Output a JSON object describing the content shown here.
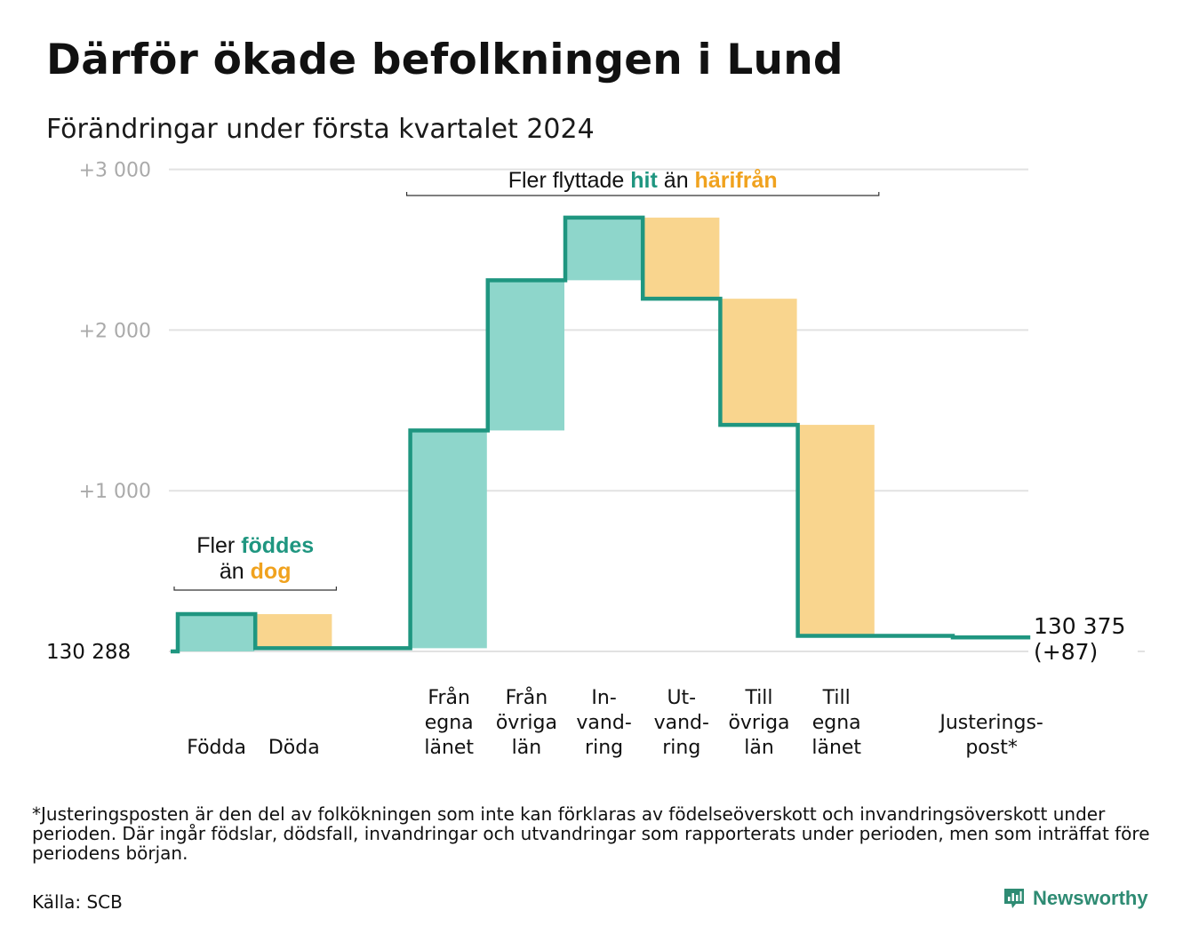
{
  "title": "Därför ökade befolkningen i Lund",
  "subtitle": "Förändringar under första kvartalet 2024",
  "footnote": "*Justeringsposten är den del av folkökningen som inte kan förklaras av födelseöverskott och invandringsöverskott under perioden. Där ingår födslar, dödsfall, invandringar och utvandringar som rapporterats under perioden, men som inträffat före periodens början.",
  "source": "Källa: SCB",
  "brand": "Newsworthy",
  "colors": {
    "increase": "#8ed6cb",
    "decrease": "#f9d58e",
    "line": "#1f9680",
    "grid": "#e2e2e2",
    "axis_text": "#aaaaaa"
  },
  "chart_data": {
    "type": "waterfall",
    "start_label": "130   288",
    "start_value": 130288,
    "end_label": "130 375",
    "end_change_label": "(+87)",
    "end_value": 130375,
    "y_ticks": [
      {
        "value": 1000,
        "label": "+1   000"
      },
      {
        "value": 2000,
        "label": "+2   000"
      },
      {
        "value": 3000,
        "label": "+3   000"
      }
    ],
    "ylim": [
      0,
      3000
    ],
    "grid": true,
    "steps": [
      {
        "lines": [
          "Födda"
        ],
        "change": 232,
        "kind": "increase"
      },
      {
        "lines": [
          "Döda"
        ],
        "change": -212,
        "kind": "decrease"
      },
      {
        "lines": [
          ""
        ],
        "change": 0,
        "kind": "gap"
      },
      {
        "lines": [
          "Från",
          "egna",
          "länet"
        ],
        "change": 1355,
        "kind": "increase"
      },
      {
        "lines": [
          "Från",
          "övriga",
          "län"
        ],
        "change": 935,
        "kind": "increase"
      },
      {
        "lines": [
          "In-",
          "vand-",
          "ring"
        ],
        "change": 390,
        "kind": "increase"
      },
      {
        "lines": [
          "Ut-",
          "vand-",
          "ring"
        ],
        "change": -505,
        "kind": "decrease"
      },
      {
        "lines": [
          "Till",
          "övriga",
          "län"
        ],
        "change": -785,
        "kind": "decrease"
      },
      {
        "lines": [
          "Till",
          "egna",
          "länet"
        ],
        "change": -1313,
        "kind": "decrease"
      },
      {
        "lines": [
          ""
        ],
        "change": 0,
        "kind": "gap"
      },
      {
        "lines": [
          "Justerings-",
          "post*"
        ],
        "change": -10,
        "kind": "decrease"
      }
    ],
    "annotations": [
      {
        "parts": [
          {
            "text": "Fler",
            "style": "plain"
          },
          {
            "text": "föddes",
            "style": "increase"
          }
        ],
        "parts2": [
          {
            "text": "än",
            "style": "plain"
          },
          {
            "text": "dog",
            "style": "decrease"
          }
        ],
        "span": [
          0,
          1
        ]
      },
      {
        "parts": [
          {
            "text": "Fler flyttade",
            "style": "plain"
          },
          {
            "text": "hit",
            "style": "increase"
          },
          {
            "text": "än",
            "style": "plain"
          },
          {
            "text": "härifrån",
            "style": "decrease"
          }
        ],
        "span": [
          3,
          8
        ]
      }
    ]
  }
}
